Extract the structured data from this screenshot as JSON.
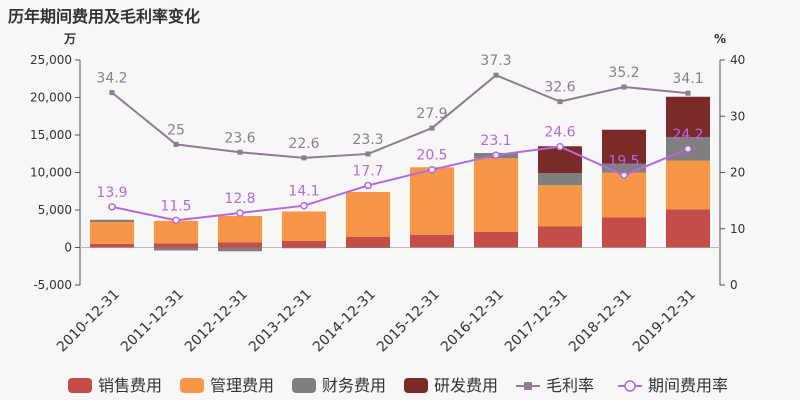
{
  "title": "历年期间费用及毛利率变化",
  "units": {
    "left": "万",
    "right": "%"
  },
  "colors": {
    "sales": "#c44d4a",
    "admin": "#f79646",
    "finance": "#7f7f7f",
    "rd": "#7b2a2a",
    "gross": "#8c7d8f",
    "period": "#b469e0",
    "axis": "#555555",
    "grid": "#dddddd"
  },
  "chart_data": {
    "type": "bar",
    "categories": [
      "2010-12-31",
      "2011-12-31",
      "2012-12-31",
      "2013-12-31",
      "2014-12-31",
      "2015-12-31",
      "2016-12-31",
      "2017-12-31",
      "2018-12-31",
      "2019-12-31"
    ],
    "ylim_left": [
      -5000,
      25000
    ],
    "yticks_left": [
      "-5,000",
      "0",
      "5,000",
      "10,000",
      "15,000",
      "20,000",
      "25,000"
    ],
    "ylim_right": [
      0,
      40
    ],
    "yticks_right": [
      "0",
      "10",
      "20",
      "30",
      "40"
    ],
    "series": [
      {
        "name": "销售费用",
        "key": "sales",
        "values": [
          500,
          550,
          700,
          900,
          1400,
          1700,
          2100,
          2800,
          4000,
          5100
        ]
      },
      {
        "name": "管理费用",
        "key": "admin",
        "values": [
          2900,
          3000,
          3500,
          3900,
          6000,
          9000,
          9800,
          5500,
          6000,
          6500
        ]
      },
      {
        "name": "财务费用",
        "key": "finance",
        "values": [
          300,
          -400,
          -500,
          -100,
          -50,
          0,
          700,
          1600,
          1200,
          3100
        ]
      },
      {
        "name": "研发费用",
        "key": "rd",
        "values": [
          0,
          0,
          0,
          0,
          0,
          0,
          0,
          3600,
          4500,
          5400
        ]
      }
    ],
    "lines": [
      {
        "name": "毛利率",
        "key": "gross",
        "values": [
          34.2,
          25,
          23.6,
          22.6,
          23.3,
          27.9,
          37.3,
          32.6,
          35.2,
          34.1
        ],
        "labels": [
          "34.2",
          "25",
          "23.6",
          "22.6",
          "23.3",
          "27.9",
          "37.3",
          "32.6",
          "35.2",
          "34.1"
        ]
      },
      {
        "name": "期间费用率",
        "key": "period",
        "values": [
          13.9,
          11.5,
          12.8,
          14.1,
          17.7,
          20.5,
          23.1,
          24.6,
          19.5,
          24.2
        ],
        "labels": [
          "13.9",
          "11.5",
          "12.8",
          "14.1",
          "17.7",
          "20.5",
          "23.1",
          "24.6",
          "19.5",
          "24.2"
        ]
      }
    ],
    "legend_position": "bottom",
    "grid": false
  }
}
